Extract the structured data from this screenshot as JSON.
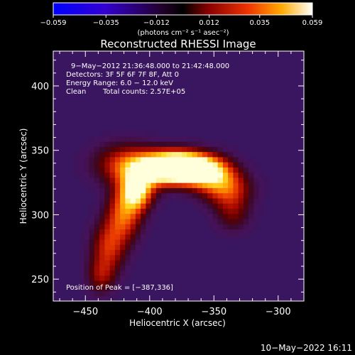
{
  "chart_data": {
    "type": "heatmap",
    "title": "Reconstructed RHESSI Image",
    "xlabel": "Heliocentric X (arcsec)",
    "ylabel": "Heliocentric Y (arcsec)",
    "xlim": [
      -475,
      -280
    ],
    "ylim": [
      233,
      427
    ],
    "x_ticks": [
      -450,
      -400,
      -350,
      -300
    ],
    "y_ticks": [
      250,
      300,
      350,
      400
    ],
    "x_tick_labels": [
      "−450",
      "−400",
      "−350",
      "−300"
    ],
    "y_tick_labels": [
      "250",
      "300",
      "350",
      "400"
    ],
    "colorbar": {
      "range": [
        -0.059,
        0.059
      ],
      "tick_values": [
        -0.059,
        -0.035,
        -0.012,
        0.012,
        0.035,
        0.059
      ],
      "tick_labels": [
        "−0.059",
        "−0.035",
        "−0.012",
        "0.012",
        "0.035",
        "0.059"
      ],
      "unit_label": "(photons cm⁻² s⁻¹ asec⁻²)"
    },
    "annotations": {
      "time_range": "9−May−2012 21:36:48.000 to 21:42:48.000",
      "detectors": "Detectors: 3F 5F 6F 7F 8F, Att 0",
      "energy_range": "Energy Range: 6.0 − 12.0 keV",
      "method": "Clean",
      "total_counts": "Total counts: 2.57E+05",
      "peak": "Position of Peak = [−387,336]"
    },
    "peak_position": [
      -387,
      336
    ],
    "emission_sources": [
      {
        "x": -392,
        "y": 336,
        "sx": 18,
        "sy": 9,
        "amp": 1.0
      },
      {
        "x": -375,
        "y": 338,
        "sx": 14,
        "sy": 8,
        "amp": 0.95
      },
      {
        "x": -355,
        "y": 334,
        "sx": 14,
        "sy": 9,
        "amp": 0.85
      },
      {
        "x": -410,
        "y": 318,
        "sx": 9,
        "sy": 10,
        "amp": 0.85
      },
      {
        "x": -420,
        "y": 300,
        "sx": 10,
        "sy": 14,
        "amp": 0.6
      },
      {
        "x": -432,
        "y": 275,
        "sx": 10,
        "sy": 14,
        "amp": 0.5
      },
      {
        "x": -438,
        "y": 252,
        "sx": 8,
        "sy": 10,
        "amp": 0.35
      },
      {
        "x": -340,
        "y": 320,
        "sx": 14,
        "sy": 10,
        "amp": 0.55
      },
      {
        "x": -335,
        "y": 300,
        "sx": 10,
        "sy": 10,
        "amp": 0.3
      },
      {
        "x": -420,
        "y": 340,
        "sx": 18,
        "sy": 12,
        "amp": 0.45
      }
    ]
  },
  "footer": {
    "timestamp": "10−May−2022 16:11"
  },
  "colors": {
    "background": "#000000",
    "text": "#ffffff"
  }
}
